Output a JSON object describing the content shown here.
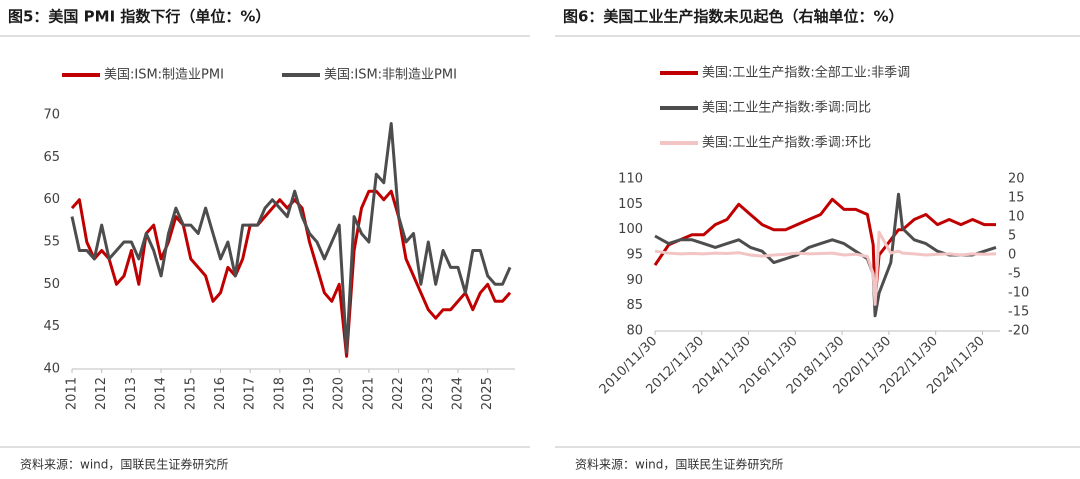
{
  "chart_data": [
    {
      "type": "line",
      "title": "图5：美国 PMI 指数下行（单位：%）",
      "source": "资料来源：wind，国联民生证券研究所",
      "x": [
        2011,
        2011.25,
        2011.5,
        2011.75,
        2012,
        2012.25,
        2012.5,
        2012.75,
        2013,
        2013.25,
        2013.5,
        2013.75,
        2014,
        2014.25,
        2014.5,
        2014.75,
        2015,
        2015.25,
        2015.5,
        2015.75,
        2016,
        2016.25,
        2016.5,
        2016.75,
        2017,
        2017.25,
        2017.5,
        2017.75,
        2018,
        2018.25,
        2018.5,
        2018.75,
        2019,
        2019.25,
        2019.5,
        2019.75,
        2020,
        2020.25,
        2020.5,
        2020.75,
        2021,
        2021.25,
        2021.5,
        2021.75,
        2022,
        2022.25,
        2022.5,
        2022.75,
        2023,
        2023.25,
        2023.5,
        2023.75,
        2024,
        2024.25,
        2024.5,
        2024.75,
        2025,
        2025.25,
        2025.5,
        2025.75
      ],
      "series": [
        {
          "name": "美国:ISM:制造业PMI",
          "color": "#c00000",
          "values": [
            59,
            60,
            55,
            53,
            54,
            53,
            50,
            51,
            54,
            50,
            56,
            57,
            53,
            55,
            58,
            57,
            53,
            52,
            51,
            48,
            49,
            52,
            51,
            53,
            57,
            57,
            58,
            59,
            60,
            59,
            60,
            59,
            55,
            52,
            49,
            48,
            50,
            41.5,
            54,
            59,
            61,
            61,
            60,
            61,
            58,
            53,
            51,
            49,
            47,
            46,
            47,
            47,
            48,
            49,
            47,
            49,
            50,
            48,
            48,
            49
          ]
        },
        {
          "name": "美国:ISM:非制造业PMI",
          "color": "#4d4d4d",
          "values": [
            58,
            54,
            54,
            53,
            57,
            53,
            54,
            55,
            55,
            53,
            56,
            54,
            51,
            56,
            59,
            57,
            57,
            56,
            59,
            56,
            53,
            55,
            51,
            57,
            57,
            57,
            59,
            60,
            59,
            58,
            61,
            58,
            56,
            55,
            53,
            55,
            57,
            42,
            58,
            56,
            55,
            63,
            62,
            69,
            58,
            55,
            56,
            50,
            55,
            50,
            54,
            52,
            52,
            49,
            54,
            54,
            51,
            50,
            50,
            52
          ]
        }
      ],
      "xlim": [
        2011,
        2025.92
      ],
      "xticks": [
        2011,
        2012,
        2013,
        2014,
        2015,
        2016,
        2017,
        2018,
        2019,
        2020,
        2021,
        2022,
        2023,
        2024,
        2025
      ],
      "ylim": [
        40,
        70
      ],
      "yticks": [
        40,
        45,
        50,
        55,
        60,
        65,
        70
      ],
      "grid": false,
      "legend": "top"
    },
    {
      "type": "line",
      "title": "图6：美国工业生产指数未见起色（右轴单位：%）",
      "source": "资料来源：wind，国联民生证券研究所",
      "x": [
        2010.92,
        2011.5,
        2012,
        2012.5,
        2013,
        2013.5,
        2014,
        2014.5,
        2015,
        2015.5,
        2016,
        2016.5,
        2017,
        2017.5,
        2018,
        2018.5,
        2019,
        2019.5,
        2020,
        2020.25,
        2020.33,
        2020.5,
        2021,
        2021.33,
        2021.5,
        2022,
        2022.5,
        2023,
        2023.5,
        2024,
        2024.5,
        2025,
        2025.5
      ],
      "series": [
        {
          "name": "美国:工业生产指数:全部工业:非季调",
          "color": "#c00000",
          "values": [
            93,
            97,
            98,
            99,
            99,
            101,
            102,
            105,
            103,
            101,
            100,
            100,
            101,
            102,
            103,
            106,
            104,
            104,
            103,
            97,
            86,
            95,
            98,
            100,
            100,
            102,
            103,
            101,
            102,
            101,
            102,
            101,
            101
          ]
        },
        {
          "name": "美国:工业生产指数:季调:同比",
          "color": "#4d4d4d",
          "axis": "y2",
          "values": [
            5,
            3,
            4,
            4,
            3,
            2,
            3,
            4,
            2,
            1,
            -2,
            -1,
            0,
            2,
            3,
            4,
            3,
            1,
            -1,
            -5,
            -16,
            -10,
            -2,
            16,
            7,
            4,
            3,
            1,
            0,
            0,
            0,
            1,
            2
          ]
        },
        {
          "name": "美国:工业生产指数:季调:环比",
          "color": "#f2c4c4",
          "axis": "y2",
          "values": [
            1,
            0.5,
            0.3,
            0.4,
            0.3,
            0.5,
            0.4,
            0.6,
            0,
            -0.3,
            0,
            0.2,
            0.5,
            0.3,
            0.4,
            0.5,
            0,
            0.2,
            -0.4,
            -5,
            -13,
            6,
            0.5,
            1,
            0.5,
            0.3,
            0,
            0.2,
            0.3,
            0,
            0.3,
            0.2,
            0.3
          ]
        }
      ],
      "xlim": [
        2010.92,
        2025.67
      ],
      "xticks": [
        {
          "value": 2010.92,
          "label": "2010/11/30"
        },
        {
          "value": 2012.92,
          "label": "2012/11/30"
        },
        {
          "value": 2014.92,
          "label": "2014/11/30"
        },
        {
          "value": 2016.92,
          "label": "2016/11/30"
        },
        {
          "value": 2018.92,
          "label": "2018/11/30"
        },
        {
          "value": 2020.92,
          "label": "2020/11/30"
        },
        {
          "value": 2022.92,
          "label": "2022/11/30"
        },
        {
          "value": 2024.92,
          "label": "2024/11/30"
        }
      ],
      "ylim": [
        80,
        110
      ],
      "yticks": [
        80,
        85,
        90,
        95,
        100,
        105,
        110
      ],
      "y2lim": [
        -20,
        20
      ],
      "y2ticks": [
        -20,
        -15,
        -10,
        -5,
        0,
        5,
        10,
        15,
        20
      ],
      "grid": false,
      "legend": "top-left"
    }
  ]
}
